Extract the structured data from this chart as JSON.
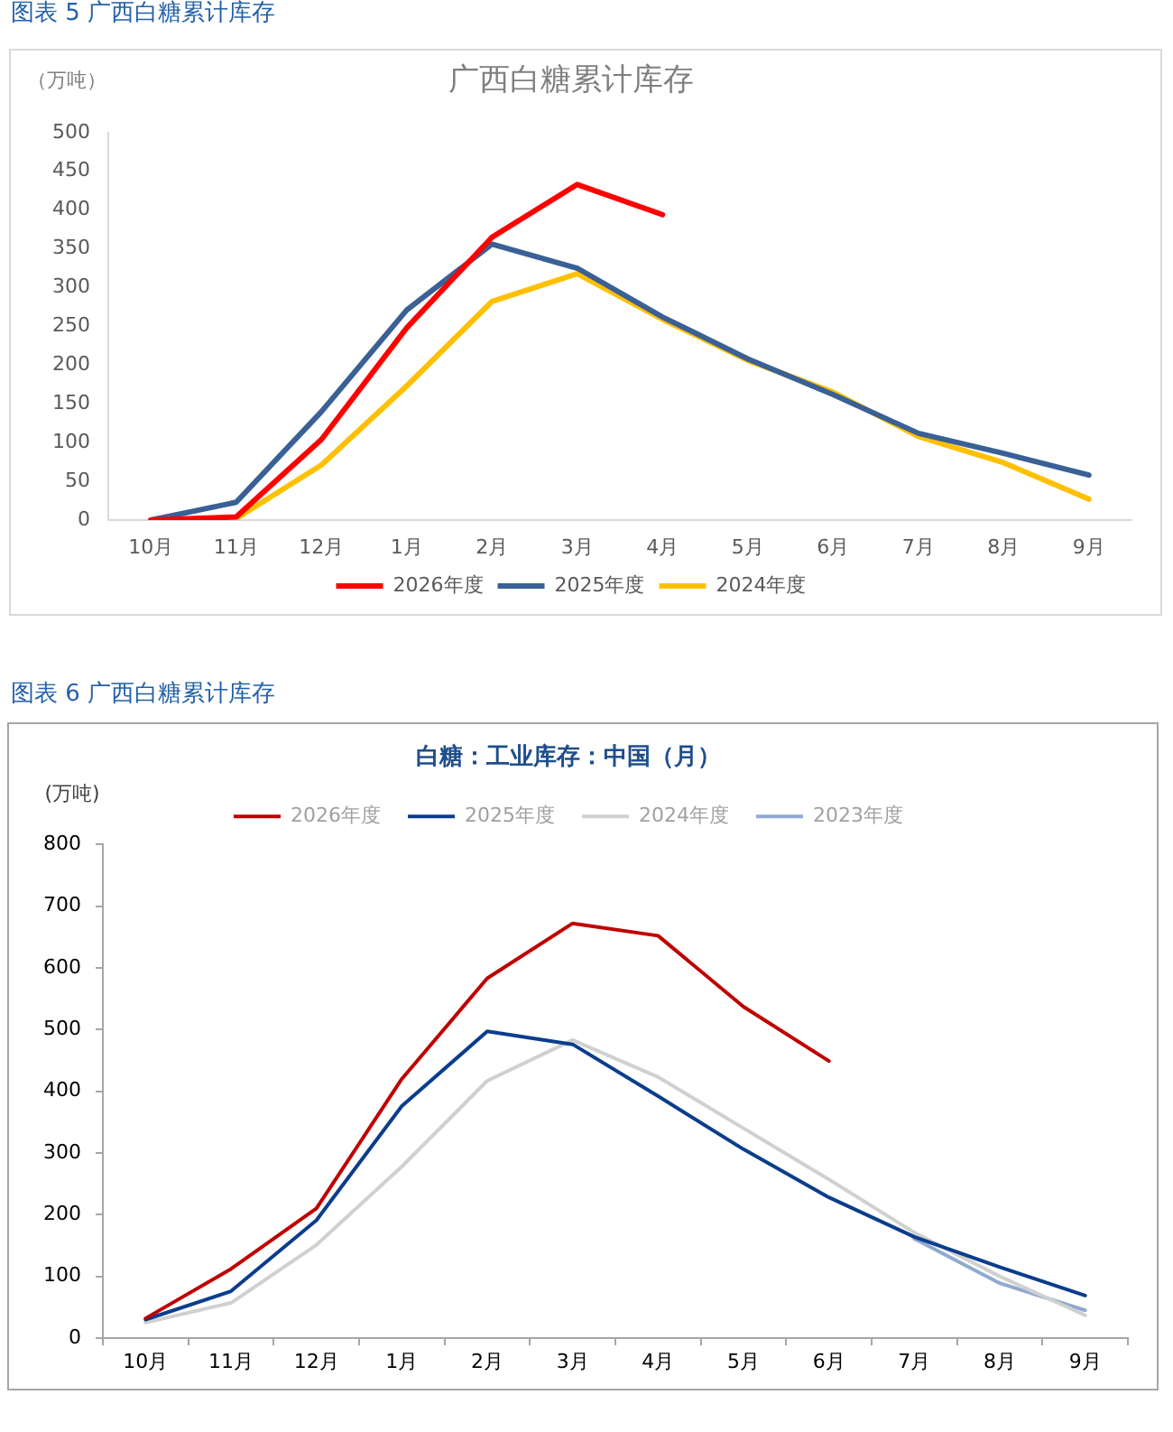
{
  "chart_data": [
    {
      "type": "line",
      "title": "广西白糖累计库存",
      "ylabel": "（万吨）",
      "annotations": [
        "图表 5  广西白糖累计库存"
      ],
      "categories": [
        "10月",
        "11月",
        "12月",
        "1月",
        "2月",
        "3月",
        "4月",
        "5月",
        "6月",
        "7月",
        "8月",
        "9月"
      ],
      "series": [
        {
          "name": "2026年度",
          "color": "#ff0000",
          "values": [
            0,
            4,
            104,
            248,
            365,
            433,
            394,
            null,
            null,
            null,
            null,
            null
          ]
        },
        {
          "name": "2025年度",
          "color": "#3a6095",
          "values": [
            0,
            23,
            140,
            271,
            356,
            325,
            262,
            208,
            162,
            112,
            86,
            58
          ]
        },
        {
          "name": "2024年度",
          "color": "#ffc000",
          "values": [
            0,
            2,
            71,
            173,
            282,
            318,
            259,
            206,
            165,
            108,
            74,
            27
          ]
        }
      ],
      "ylim": [
        0,
        500
      ],
      "yticks": [
        0,
        50,
        100,
        150,
        200,
        250,
        300,
        350,
        400,
        450,
        500
      ],
      "grid": false,
      "legend": "bottom",
      "marker": "none"
    },
    {
      "type": "line",
      "title": "白糖：工业库存：中国（月）",
      "ylabel": "(万吨)",
      "annotations": [
        "图表 6  广西白糖累计库存"
      ],
      "categories": [
        "10月",
        "11月",
        "12月",
        "1月",
        "2月",
        "3月",
        "4月",
        "5月",
        "6月",
        "7月",
        "8月",
        "9月"
      ],
      "series": [
        {
          "name": "2026年度",
          "color": "#c00000",
          "values": [
            32,
            112,
            210,
            420,
            583,
            672,
            652,
            537,
            449,
            null,
            null,
            null
          ]
        },
        {
          "name": "2025年度",
          "color": "#0b3d8c",
          "values": [
            30,
            76,
            191,
            376,
            497,
            476,
            392,
            306,
            228,
            164,
            115,
            69
          ]
        },
        {
          "name": "2024年度",
          "color": "#d0d0d0",
          "values": [
            25,
            57,
            151,
            278,
            417,
            483,
            423,
            340,
            257,
            171,
            100,
            37
          ]
        },
        {
          "name": "2023年度",
          "color": "#8faad1",
          "values": [
            null,
            null,
            null,
            null,
            null,
            null,
            null,
            null,
            null,
            161,
            89,
            45
          ]
        }
      ],
      "ylim": [
        0,
        800
      ],
      "yticks": [
        0,
        100,
        200,
        300,
        400,
        500,
        600,
        700,
        800
      ],
      "grid": false,
      "legend": "top",
      "marker": "none"
    }
  ]
}
